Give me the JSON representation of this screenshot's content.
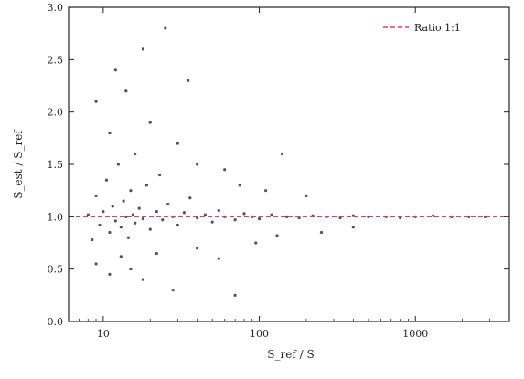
{
  "chart_data": {
    "type": "scatter",
    "title": "",
    "xlabel": "S_ref / S",
    "ylabel": "S_est / S_ref",
    "x_scale": "log",
    "xlim": [
      6,
      4000
    ],
    "ylim": [
      0.0,
      3.0
    ],
    "x_ticks": [
      {
        "value": 10,
        "label": "10"
      },
      {
        "value": 100,
        "label": "100"
      },
      {
        "value": 1000,
        "label": "1000"
      }
    ],
    "y_ticks": [
      {
        "value": 0.0,
        "label": "0.0"
      },
      {
        "value": 0.5,
        "label": "0.5"
      },
      {
        "value": 1.0,
        "label": "1.0"
      },
      {
        "value": 1.5,
        "label": "1.5"
      },
      {
        "value": 2.0,
        "label": "2.0"
      },
      {
        "value": 2.5,
        "label": "2.5"
      },
      {
        "value": 3.0,
        "label": "3.0"
      }
    ],
    "reference_line": {
      "y": 1.0,
      "color": "#e0405a",
      "style": "dashed"
    },
    "legend": {
      "position": "top-right",
      "entries": [
        {
          "label": "Ratio 1:1",
          "color": "#e0405a"
        }
      ]
    },
    "grid": false,
    "series": [
      {
        "color": "#1a1a1a",
        "points": [
          {
            "x": 8.0,
            "y": 1.02
          },
          {
            "x": 8.5,
            "y": 0.78
          },
          {
            "x": 9.0,
            "y": 1.2
          },
          {
            "x": 9.5,
            "y": 0.92
          },
          {
            "x": 10.0,
            "y": 1.05
          },
          {
            "x": 10.5,
            "y": 1.35
          },
          {
            "x": 11.0,
            "y": 0.85
          },
          {
            "x": 11.5,
            "y": 1.1
          },
          {
            "x": 12.0,
            "y": 0.96
          },
          {
            "x": 12.5,
            "y": 1.5
          },
          {
            "x": 13.0,
            "y": 0.9
          },
          {
            "x": 13.5,
            "y": 1.15
          },
          {
            "x": 14.0,
            "y": 1.0
          },
          {
            "x": 14.5,
            "y": 0.8
          },
          {
            "x": 15.0,
            "y": 1.25
          },
          {
            "x": 15.5,
            "y": 1.02
          },
          {
            "x": 16.0,
            "y": 0.94
          },
          {
            "x": 17.0,
            "y": 1.08
          },
          {
            "x": 18.0,
            "y": 0.98
          },
          {
            "x": 19.0,
            "y": 1.3
          },
          {
            "x": 20.0,
            "y": 0.88
          },
          {
            "x": 22.0,
            "y": 1.05
          },
          {
            "x": 24.0,
            "y": 0.97
          },
          {
            "x": 26.0,
            "y": 1.12
          },
          {
            "x": 28.0,
            "y": 1.0
          },
          {
            "x": 30.0,
            "y": 0.92
          },
          {
            "x": 33.0,
            "y": 1.04
          },
          {
            "x": 36.0,
            "y": 1.18
          },
          {
            "x": 40.0,
            "y": 0.99
          },
          {
            "x": 45.0,
            "y": 1.02
          },
          {
            "x": 50.0,
            "y": 0.95
          },
          {
            "x": 55.0,
            "y": 1.06
          },
          {
            "x": 60.0,
            "y": 1.0
          },
          {
            "x": 70.0,
            "y": 0.97
          },
          {
            "x": 80.0,
            "y": 1.03
          },
          {
            "x": 90.0,
            "y": 1.0
          },
          {
            "x": 100.0,
            "y": 0.98
          },
          {
            "x": 120.0,
            "y": 1.02
          },
          {
            "x": 150.0,
            "y": 1.0
          },
          {
            "x": 180.0,
            "y": 0.99
          },
          {
            "x": 220.0,
            "y": 1.01
          },
          {
            "x": 270.0,
            "y": 1.0
          },
          {
            "x": 330.0,
            "y": 0.99
          },
          {
            "x": 400.0,
            "y": 1.01
          },
          {
            "x": 500.0,
            "y": 1.0
          },
          {
            "x": 650.0,
            "y": 1.0
          },
          {
            "x": 800.0,
            "y": 0.99
          },
          {
            "x": 1000.0,
            "y": 1.0
          },
          {
            "x": 1300.0,
            "y": 1.01
          },
          {
            "x": 1700.0,
            "y": 1.0
          },
          {
            "x": 2200.0,
            "y": 1.0
          },
          {
            "x": 2800.0,
            "y": 1.0
          },
          {
            "x": 9.0,
            "y": 2.1
          },
          {
            "x": 11.0,
            "y": 1.8
          },
          {
            "x": 12.0,
            "y": 2.4
          },
          {
            "x": 14.0,
            "y": 2.2
          },
          {
            "x": 16.0,
            "y": 1.6
          },
          {
            "x": 18.0,
            "y": 2.6
          },
          {
            "x": 20.0,
            "y": 1.9
          },
          {
            "x": 23.0,
            "y": 1.4
          },
          {
            "x": 25.0,
            "y": 2.8
          },
          {
            "x": 30.0,
            "y": 1.7
          },
          {
            "x": 35.0,
            "y": 2.3
          },
          {
            "x": 40.0,
            "y": 1.5
          },
          {
            "x": 60.0,
            "y": 1.45
          },
          {
            "x": 75.0,
            "y": 1.3
          },
          {
            "x": 110.0,
            "y": 1.25
          },
          {
            "x": 140.0,
            "y": 1.6
          },
          {
            "x": 200.0,
            "y": 1.2
          },
          {
            "x": 9.0,
            "y": 0.55
          },
          {
            "x": 11.0,
            "y": 0.45
          },
          {
            "x": 13.0,
            "y": 0.62
          },
          {
            "x": 15.0,
            "y": 0.5
          },
          {
            "x": 18.0,
            "y": 0.4
          },
          {
            "x": 22.0,
            "y": 0.65
          },
          {
            "x": 28.0,
            "y": 0.3
          },
          {
            "x": 40.0,
            "y": 0.7
          },
          {
            "x": 55.0,
            "y": 0.6
          },
          {
            "x": 70.0,
            "y": 0.25
          },
          {
            "x": 95.0,
            "y": 0.75
          },
          {
            "x": 130.0,
            "y": 0.82
          },
          {
            "x": 250.0,
            "y": 0.85
          },
          {
            "x": 400.0,
            "y": 0.9
          }
        ]
      }
    ]
  }
}
